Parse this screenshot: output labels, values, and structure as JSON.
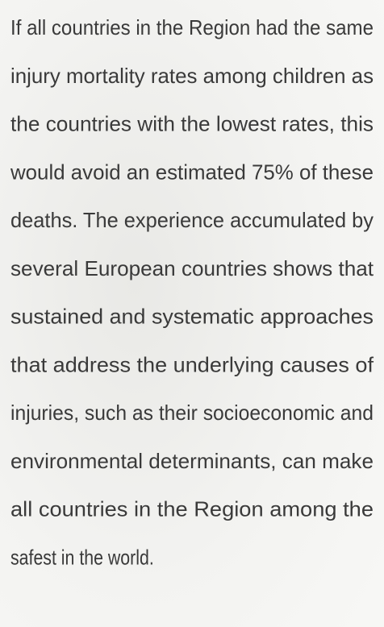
{
  "paragraph": {
    "lines": [
      "If all countries in the Region had the same",
      "injury mortality rates among children as",
      "the countries with the lowest rates, this",
      "would avoid an estimated 75% of these",
      "deaths. The experience accumulated by",
      "several European countries shows that",
      "sustained and systematic approaches",
      "that address the underlying causes of",
      "injuries, such as their socioeconomic and",
      "environmental determinants, can make",
      "all countries in the Region among the",
      "safest in the world."
    ]
  }
}
